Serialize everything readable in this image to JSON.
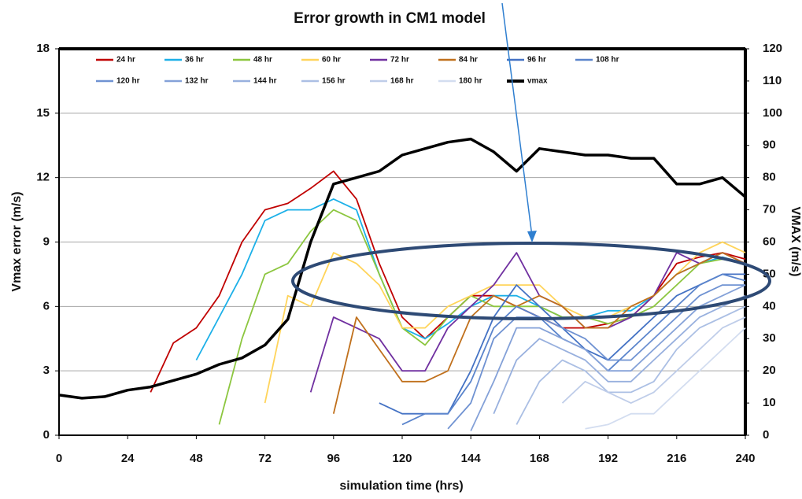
{
  "chart_data": {
    "type": "line",
    "title": "Error growth in CM1 model",
    "x_label": "simulation time (hrs)",
    "y_label": "Vmax error  (m/s)",
    "y2_label": "VMAX (m/s)",
    "x": [
      0,
      8,
      16,
      24,
      32,
      40,
      48,
      56,
      64,
      72,
      80,
      88,
      96,
      104,
      112,
      120,
      128,
      136,
      144,
      152,
      160,
      168,
      176,
      184,
      192,
      200,
      208,
      216,
      224,
      232,
      240
    ],
    "xlim": [
      0,
      240
    ],
    "xticks": [
      0,
      24,
      48,
      72,
      96,
      120,
      144,
      168,
      192,
      216,
      240
    ],
    "ylim": [
      0,
      18
    ],
    "yticks": [
      0,
      3,
      6,
      9,
      12,
      15,
      18
    ],
    "y2lim": [
      0,
      120
    ],
    "y2ticks": [
      0,
      10,
      20,
      30,
      40,
      50,
      60,
      70,
      80,
      90,
      100,
      110,
      120
    ],
    "grid": true,
    "series": [
      {
        "name": "24 hr",
        "color": "#c00000",
        "values": [
          null,
          null,
          null,
          null,
          2,
          4.3,
          5,
          6.5,
          9,
          10.5,
          10.8,
          11.5,
          12.3,
          11,
          8,
          5.5,
          4.5,
          5.5,
          6.5,
          6.5,
          6,
          5.5,
          5,
          5,
          5.2,
          5.5,
          6.5,
          8,
          8.3,
          8.5,
          8.2
        ]
      },
      {
        "name": "36 hr",
        "color": "#1cb0e8",
        "values": [
          null,
          null,
          null,
          null,
          null,
          null,
          3.5,
          5.5,
          7.5,
          10,
          10.5,
          10.5,
          11,
          10.5,
          7.5,
          5,
          4.5,
          5.2,
          6,
          6.5,
          6.5,
          6,
          5.5,
          5.5,
          5.8,
          5.8,
          6.5,
          7.5,
          8,
          8.3,
          8
        ]
      },
      {
        "name": "48 hr",
        "color": "#8cc63f",
        "values": [
          null,
          null,
          null,
          null,
          null,
          null,
          null,
          0.5,
          4.5,
          7.5,
          8,
          9.5,
          10.5,
          10,
          7.5,
          5,
          4.2,
          5.5,
          6.5,
          6,
          6,
          6,
          5.5,
          5.5,
          5.2,
          5.5,
          6,
          7,
          8,
          8.2,
          8
        ]
      },
      {
        "name": "60 hr",
        "color": "#ffd45a",
        "values": [
          null,
          null,
          null,
          null,
          null,
          null,
          null,
          null,
          null,
          1.5,
          6.5,
          6,
          8.5,
          8,
          7,
          5,
          5,
          6,
          6.5,
          7,
          7,
          7,
          6,
          5.5,
          5.5,
          6,
          6.5,
          7.5,
          8.5,
          9,
          8.5
        ]
      },
      {
        "name": "72 hr",
        "color": "#7030a0",
        "values": [
          null,
          null,
          null,
          null,
          null,
          null,
          null,
          null,
          null,
          null,
          null,
          2,
          5.5,
          5,
          4.5,
          3,
          3,
          5,
          6,
          7,
          8.5,
          6.5,
          6,
          5,
          5,
          5.5,
          6.5,
          8.5,
          8,
          8.5,
          8
        ]
      },
      {
        "name": "84 hr",
        "color": "#c0701c",
        "values": [
          null,
          null,
          null,
          null,
          null,
          null,
          null,
          null,
          null,
          null,
          null,
          null,
          1,
          5.5,
          4,
          2.5,
          2.5,
          3,
          5.5,
          6.5,
          6,
          6.5,
          6,
          5,
          5,
          6,
          6.5,
          7.5,
          8,
          8.5,
          8
        ]
      },
      {
        "name": "96 hr",
        "color": "#4472c4",
        "values": [
          null,
          null,
          null,
          null,
          null,
          null,
          null,
          null,
          null,
          null,
          null,
          null,
          null,
          null,
          1.5,
          1,
          1,
          1,
          3,
          5.5,
          7,
          6,
          5,
          4,
          3.5,
          4.5,
          5.5,
          6.5,
          7,
          7.5,
          7.5
        ]
      },
      {
        "name": "108 hr",
        "color": "#5a84cc",
        "values": [
          null,
          null,
          null,
          null,
          null,
          null,
          null,
          null,
          null,
          null,
          null,
          null,
          null,
          null,
          null,
          0.5,
          1,
          1,
          2.5,
          5,
          6,
          5.5,
          4.5,
          4,
          3,
          4,
          5,
          6,
          7,
          7.5,
          7.2
        ]
      },
      {
        "name": "120 hr",
        "color": "#6f92d2",
        "values": [
          null,
          null,
          null,
          null,
          null,
          null,
          null,
          null,
          null,
          null,
          null,
          null,
          null,
          null,
          null,
          null,
          null,
          0.3,
          1.5,
          4.5,
          5.5,
          5.5,
          5,
          4.5,
          3.5,
          3.5,
          4.5,
          5.5,
          6.5,
          7,
          7
        ]
      },
      {
        "name": "132 hr",
        "color": "#84a1d8",
        "values": [
          null,
          null,
          null,
          null,
          null,
          null,
          null,
          null,
          null,
          null,
          null,
          null,
          null,
          null,
          null,
          null,
          null,
          null,
          0.2,
          2.5,
          5,
          5,
          4.5,
          4,
          3,
          3,
          4,
          5,
          6,
          6.5,
          7
        ]
      },
      {
        "name": "144 hr",
        "color": "#98b0de",
        "values": [
          null,
          null,
          null,
          null,
          null,
          null,
          null,
          null,
          null,
          null,
          null,
          null,
          null,
          null,
          null,
          null,
          null,
          null,
          null,
          1,
          3.5,
          4.5,
          4,
          3.5,
          2.5,
          2.5,
          3.5,
          4.5,
          5.5,
          6,
          6.5
        ]
      },
      {
        "name": "156 hr",
        "color": "#abbfe4",
        "values": [
          null,
          null,
          null,
          null,
          null,
          null,
          null,
          null,
          null,
          null,
          null,
          null,
          null,
          null,
          null,
          null,
          null,
          null,
          null,
          null,
          0.5,
          2.5,
          3.5,
          3,
          2,
          2,
          2.5,
          4,
          5,
          5.5,
          6
        ]
      },
      {
        "name": "168 hr",
        "color": "#bfcde9",
        "values": [
          null,
          null,
          null,
          null,
          null,
          null,
          null,
          null,
          null,
          null,
          null,
          null,
          null,
          null,
          null,
          null,
          null,
          null,
          null,
          null,
          null,
          null,
          1.5,
          2.5,
          2,
          1.5,
          2,
          3,
          4,
          5,
          5.5
        ]
      },
      {
        "name": "180 hr",
        "color": "#d3ddf0",
        "values": [
          null,
          null,
          null,
          null,
          null,
          null,
          null,
          null,
          null,
          null,
          null,
          null,
          null,
          null,
          null,
          null,
          null,
          null,
          null,
          null,
          null,
          null,
          null,
          0.3,
          0.5,
          1,
          1,
          2,
          3,
          4,
          5
        ]
      },
      {
        "name": "vmax",
        "color": "#000000",
        "axis": "y2",
        "values": [
          12.5,
          11.5,
          12,
          14,
          15,
          17,
          19,
          22,
          24,
          28,
          36,
          60,
          78,
          80,
          82,
          87,
          89,
          91,
          92,
          88,
          82,
          89,
          88,
          87,
          87,
          86,
          86,
          78,
          78,
          80,
          74
        ]
      }
    ]
  }
}
